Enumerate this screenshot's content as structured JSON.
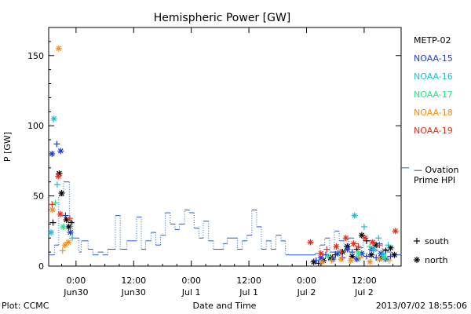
{
  "chart_data": {
    "type": "scatter",
    "title": "Hemispheric Power [GW]",
    "xlabel": "Date and Time",
    "ylabel": "P [GW]",
    "ylim": [
      0,
      170
    ],
    "yticks": [
      0,
      50,
      100,
      150
    ],
    "xticks": [
      {
        "t": 0,
        "line1": "0:00",
        "line2": "Jun30"
      },
      {
        "t": 12,
        "line1": "12:00",
        "line2": "Jun30"
      },
      {
        "t": 24,
        "line1": "0:00",
        "line2": "Jul 1"
      },
      {
        "t": 36,
        "line1": "12:00",
        "line2": "Jul 1"
      },
      {
        "t": 48,
        "line1": "0:00",
        "line2": "Jul 2"
      },
      {
        "t": 60,
        "line1": "12:00",
        "line2": "Jul 2"
      }
    ],
    "xlim_hours": [
      -5.7,
      67.7
    ],
    "legend": [
      {
        "name": "METP-02",
        "color": "#000000"
      },
      {
        "name": "NOAA-15",
        "color": "#1e3fcc"
      },
      {
        "name": "NOAA-16",
        "color": "#22bcd4"
      },
      {
        "name": "NOAA-17",
        "color": "#2ee08a"
      },
      {
        "name": "NOAA-18",
        "color": "#f0901c"
      },
      {
        "name": "NOAA-19",
        "color": "#e03020"
      }
    ],
    "ovation": {
      "label_line1": "— Ovation",
      "label_line2": "Prime HPI",
      "color": "#1f5fcf",
      "ref_value": 70,
      "steps": [
        [
          -5.7,
          8
        ],
        [
          -4.5,
          15
        ],
        [
          -3.6,
          50
        ],
        [
          -2.6,
          60
        ],
        [
          -1.4,
          32
        ],
        [
          -0.7,
          20
        ],
        [
          0.6,
          10
        ],
        [
          1.1,
          18
        ],
        [
          2.5,
          12
        ],
        [
          3.5,
          8
        ],
        [
          4.6,
          10
        ],
        [
          5.6,
          8
        ],
        [
          6.6,
          12
        ],
        [
          8.2,
          36
        ],
        [
          9.2,
          12
        ],
        [
          10.6,
          18
        ],
        [
          12.6,
          35
        ],
        [
          13.6,
          12
        ],
        [
          14.5,
          18
        ],
        [
          15.6,
          24
        ],
        [
          16.6,
          15
        ],
        [
          17.6,
          22
        ],
        [
          18.6,
          38
        ],
        [
          19.6,
          30
        ],
        [
          20.6,
          26
        ],
        [
          21.5,
          30
        ],
        [
          22.6,
          40
        ],
        [
          23.6,
          38
        ],
        [
          24.6,
          27
        ],
        [
          25.6,
          20
        ],
        [
          26.5,
          32
        ],
        [
          27.6,
          18
        ],
        [
          28.6,
          12
        ],
        [
          30.7,
          16
        ],
        [
          31.5,
          20
        ],
        [
          33.6,
          12
        ],
        [
          34.6,
          18
        ],
        [
          35.6,
          22
        ],
        [
          36.6,
          40
        ],
        [
          37.6,
          28
        ],
        [
          38.6,
          12
        ],
        [
          39.6,
          18
        ],
        [
          40.6,
          12
        ],
        [
          41.6,
          22
        ],
        [
          42.7,
          18
        ],
        [
          43.6,
          8
        ],
        [
          49.8,
          9
        ],
        [
          50.8,
          15
        ],
        [
          51.8,
          20
        ],
        [
          52.8,
          10
        ],
        [
          53.8,
          25
        ],
        [
          54.8,
          18
        ],
        [
          55.8,
          14
        ],
        [
          56.8,
          20
        ],
        [
          57.8,
          16
        ],
        [
          58.8,
          13
        ],
        [
          59.8,
          20
        ],
        [
          60.8,
          18
        ],
        [
          61.8,
          11
        ],
        [
          62.8,
          16
        ],
        [
          63.8,
          12
        ],
        [
          64.8,
          10
        ],
        [
          65.8,
          8
        ],
        [
          67.7,
          8
        ]
      ]
    },
    "series": [
      {
        "name": "METP-02",
        "points": [
          [
            -4.8,
            31,
            "+"
          ],
          [
            -3.5,
            66,
            "*"
          ],
          [
            -3.0,
            52,
            "*"
          ],
          [
            -2.0,
            33,
            "*"
          ],
          [
            -1.5,
            28,
            "*"
          ],
          [
            -1.0,
            31,
            "+"
          ],
          [
            49.5,
            3,
            "*"
          ],
          [
            50.5,
            2,
            "+"
          ],
          [
            51.5,
            4,
            "*"
          ],
          [
            53.0,
            6,
            "*"
          ],
          [
            54.0,
            8,
            "+"
          ],
          [
            55.5,
            10,
            "*"
          ],
          [
            56.5,
            14,
            "*"
          ],
          [
            57.5,
            7,
            "*"
          ],
          [
            58.5,
            12,
            "+"
          ],
          [
            59.5,
            22,
            "*"
          ],
          [
            60.5,
            18,
            "+"
          ],
          [
            61.5,
            8,
            "*"
          ],
          [
            62.5,
            15,
            "*"
          ],
          [
            63.5,
            6,
            "*"
          ],
          [
            64.5,
            11,
            "+"
          ],
          [
            65.5,
            13,
            "*"
          ],
          [
            66.3,
            8,
            "*"
          ]
        ]
      },
      {
        "name": "NOAA-15",
        "points": [
          [
            -5.0,
            80,
            "*"
          ],
          [
            -4.0,
            87,
            "+"
          ],
          [
            -3.2,
            82,
            "*"
          ],
          [
            -2.2,
            36,
            "+"
          ],
          [
            -1.2,
            24,
            "*"
          ],
          [
            50.0,
            4,
            "+"
          ],
          [
            51.0,
            6,
            "*"
          ],
          [
            52.0,
            8,
            "+"
          ],
          [
            53.5,
            5,
            "*"
          ],
          [
            54.5,
            9,
            "*"
          ],
          [
            55.5,
            6,
            "+"
          ],
          [
            56.5,
            12,
            "*"
          ],
          [
            57.5,
            10,
            "+"
          ],
          [
            58.5,
            5,
            "*"
          ],
          [
            59.5,
            9,
            "*"
          ],
          [
            60.5,
            7,
            "+"
          ],
          [
            61.5,
            12,
            "*"
          ],
          [
            62.5,
            6,
            "+"
          ],
          [
            63.5,
            9,
            "*"
          ],
          [
            64.5,
            5,
            "*"
          ],
          [
            65.5,
            7,
            "+"
          ]
        ]
      },
      {
        "name": "NOAA-16",
        "points": [
          [
            -4.6,
            105,
            "*"
          ],
          [
            -3.9,
            58,
            "+"
          ],
          [
            -5.2,
            24,
            "*"
          ],
          [
            -0.8,
            20,
            "+"
          ],
          [
            54.8,
            10,
            "+"
          ],
          [
            58.0,
            36,
            "*"
          ],
          [
            60.0,
            28,
            "+"
          ],
          [
            62.0,
            12,
            "*"
          ],
          [
            63.0,
            20,
            "+"
          ],
          [
            64.0,
            8,
            "*"
          ],
          [
            65.0,
            15,
            "+"
          ]
        ]
      },
      {
        "name": "NOAA-17",
        "points": [
          [
            -4.3,
            45,
            "+"
          ],
          [
            -2.7,
            28,
            "*"
          ],
          [
            52.5,
            7,
            "+"
          ],
          [
            58.8,
            9,
            "*"
          ],
          [
            61.2,
            14,
            "+"
          ],
          [
            64.2,
            6,
            "*"
          ]
        ]
      },
      {
        "name": "NOAA-18",
        "points": [
          [
            -3.6,
            155,
            "*"
          ],
          [
            -4.9,
            40,
            "*"
          ],
          [
            -2.8,
            11,
            "+"
          ],
          [
            -2.3,
            15,
            "*"
          ],
          [
            -1.6,
            17,
            "*"
          ],
          [
            51.2,
            3,
            "*"
          ],
          [
            53.2,
            4,
            "+"
          ],
          [
            55.2,
            5,
            "*"
          ],
          [
            57.2,
            4,
            "*"
          ],
          [
            59.2,
            6,
            "+"
          ],
          [
            61.2,
            3,
            "*"
          ],
          [
            63.2,
            5,
            "*"
          ],
          [
            65.2,
            4,
            "+"
          ]
        ]
      },
      {
        "name": "NOAA-19",
        "points": [
          [
            -5.0,
            44,
            "+"
          ],
          [
            -3.7,
            64,
            "*"
          ],
          [
            -3.3,
            37,
            "*"
          ],
          [
            -1.3,
            34,
            "+"
          ],
          [
            48.8,
            17,
            "*"
          ],
          [
            51.0,
            9,
            "*"
          ],
          [
            52.2,
            12,
            "+"
          ],
          [
            54.2,
            14,
            "*"
          ],
          [
            55.2,
            10,
            "+"
          ],
          [
            56.2,
            20,
            "*"
          ],
          [
            57.8,
            16,
            "*"
          ],
          [
            58.8,
            14,
            "+"
          ],
          [
            60.2,
            20,
            "*"
          ],
          [
            61.8,
            17,
            "*"
          ],
          [
            63.2,
            15,
            "+"
          ],
          [
            66.5,
            25,
            "*"
          ]
        ]
      }
    ],
    "marker_key": [
      {
        "symbol": "+",
        "label": "south"
      },
      {
        "symbol": "*",
        "label": "north"
      }
    ],
    "footer_left": "Plot: CCMC",
    "footer_right": "2013/07/02 18:55:06"
  }
}
